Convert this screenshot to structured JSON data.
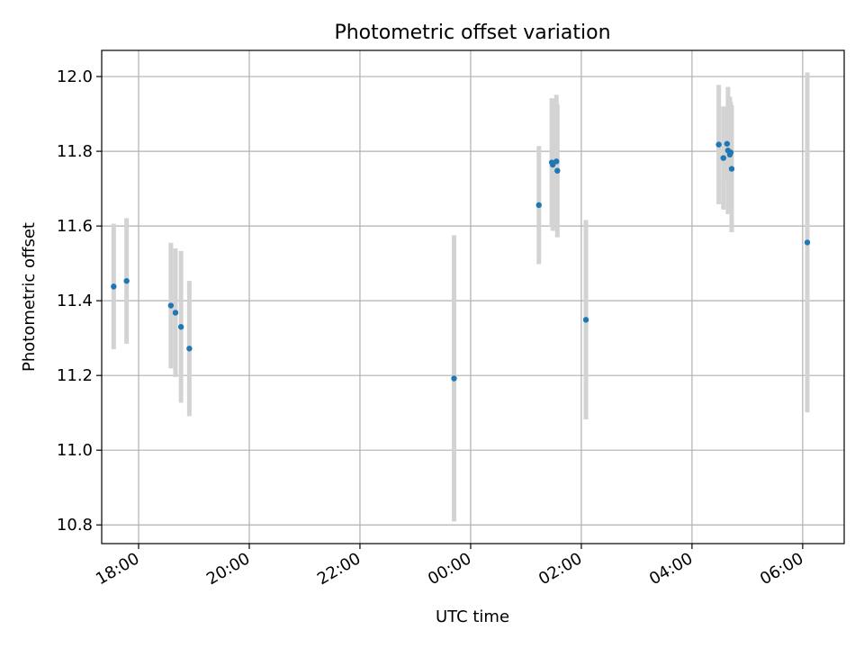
{
  "chart_data": {
    "type": "scatter",
    "title": "Photometric offset variation",
    "xlabel": "UTC time",
    "ylabel": "Photometric offset",
    "x_axis": "time",
    "x_unit": "hours",
    "xlim": [
      "17:20",
      "06:45"
    ],
    "x_ticks": [
      "18:00",
      "20:00",
      "22:00",
      "00:00",
      "02:00",
      "04:00",
      "06:00"
    ],
    "ylim": [
      10.75,
      12.07
    ],
    "y_ticks": [
      "10.8",
      "11.0",
      "11.2",
      "11.4",
      "11.6",
      "11.8",
      "12.0"
    ],
    "grid": true,
    "marker_color": "#1f77b4",
    "errorbar_color": "#d3d3d3",
    "points": [
      {
        "x": "17:33",
        "y": 11.438,
        "err": 0.168
      },
      {
        "x": "17:47",
        "y": 11.453,
        "err": 0.168
      },
      {
        "x": "18:35",
        "y": 11.387,
        "err": 0.168
      },
      {
        "x": "18:40",
        "y": 11.368,
        "err": 0.172
      },
      {
        "x": "18:46",
        "y": 11.33,
        "err": 0.203
      },
      {
        "x": "18:55",
        "y": 11.272,
        "err": 0.181
      },
      {
        "x": "23:42",
        "y": 11.192,
        "err": 0.383
      },
      {
        "x": "01:14",
        "y": 11.656,
        "err": 0.158
      },
      {
        "x": "01:28",
        "y": 11.77,
        "err": 0.172
      },
      {
        "x": "01:29",
        "y": 11.764,
        "err": 0.177
      },
      {
        "x": "01:33",
        "y": 11.773,
        "err": 0.178
      },
      {
        "x": "01:34",
        "y": 11.748,
        "err": 0.178
      },
      {
        "x": "02:05",
        "y": 11.349,
        "err": 0.267
      },
      {
        "x": "04:29",
        "y": 11.818,
        "err": 0.16
      },
      {
        "x": "04:34",
        "y": 11.782,
        "err": 0.138
      },
      {
        "x": "04:38",
        "y": 11.82,
        "err": 0.098
      },
      {
        "x": "04:39",
        "y": 11.802,
        "err": 0.17
      },
      {
        "x": "04:41",
        "y": 11.791,
        "err": 0.155
      },
      {
        "x": "04:42",
        "y": 11.797,
        "err": 0.135
      },
      {
        "x": "04:43",
        "y": 11.753,
        "err": 0.17
      },
      {
        "x": "06:05",
        "y": 11.556,
        "err": 0.455
      }
    ]
  }
}
